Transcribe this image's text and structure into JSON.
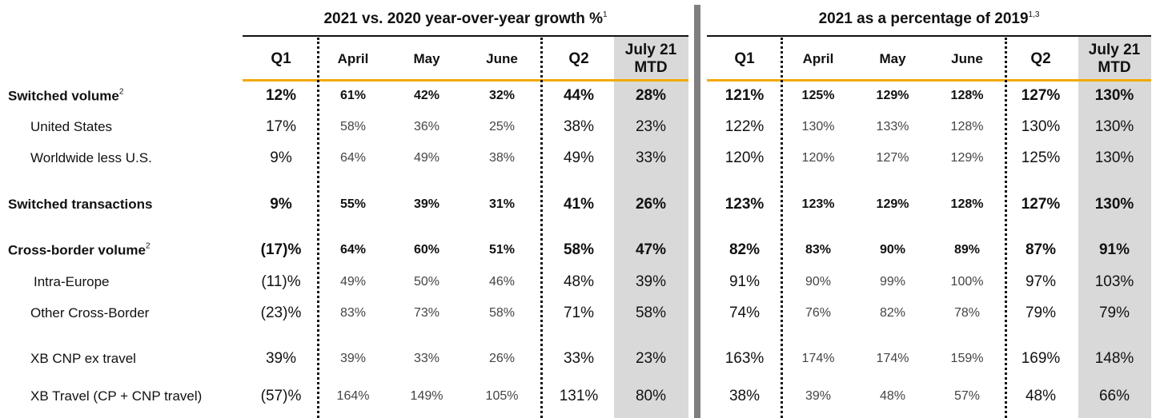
{
  "sections": [
    {
      "title": "2021 vs. 2020 year-over-year growth %",
      "title_sup": "1",
      "columns": [
        "Q1",
        "April",
        "May",
        "June",
        "Q2",
        "July 21 MTD"
      ],
      "rows": [
        [
          "12%",
          "61%",
          "42%",
          "32%",
          "44%",
          "28%"
        ],
        [
          "17%",
          "58%",
          "36%",
          "25%",
          "38%",
          "23%"
        ],
        [
          "9%",
          "64%",
          "49%",
          "38%",
          "49%",
          "33%"
        ],
        [
          "9%",
          "55%",
          "39%",
          "31%",
          "41%",
          "26%"
        ],
        [
          "(17)%",
          "64%",
          "60%",
          "51%",
          "58%",
          "47%"
        ],
        [
          "(11)%",
          "49%",
          "50%",
          "46%",
          "48%",
          "39%"
        ],
        [
          "(23)%",
          "83%",
          "73%",
          "58%",
          "71%",
          "58%"
        ],
        [
          "39%",
          "39%",
          "33%",
          "26%",
          "33%",
          "23%"
        ],
        [
          "(57)%",
          "164%",
          "149%",
          "105%",
          "131%",
          "80%"
        ]
      ]
    },
    {
      "title": "2021 as a percentage of 2019",
      "title_sup": "1,3",
      "columns": [
        "Q1",
        "April",
        "May",
        "June",
        "Q2",
        "July 21 MTD"
      ],
      "rows": [
        [
          "121%",
          "125%",
          "129%",
          "128%",
          "127%",
          "130%"
        ],
        [
          "122%",
          "130%",
          "133%",
          "128%",
          "130%",
          "130%"
        ],
        [
          "120%",
          "120%",
          "127%",
          "129%",
          "125%",
          "130%"
        ],
        [
          "123%",
          "123%",
          "129%",
          "128%",
          "127%",
          "130%"
        ],
        [
          "82%",
          "83%",
          "90%",
          "89%",
          "87%",
          "91%"
        ],
        [
          "91%",
          "90%",
          "99%",
          "100%",
          "97%",
          "103%"
        ],
        [
          "74%",
          "76%",
          "82%",
          "78%",
          "79%",
          "79%"
        ],
        [
          "163%",
          "174%",
          "174%",
          "159%",
          "169%",
          "148%"
        ],
        [
          "38%",
          "39%",
          "48%",
          "57%",
          "48%",
          "66%"
        ]
      ]
    }
  ],
  "row_labels": [
    {
      "label": "Switched volume",
      "sup": "2"
    },
    {
      "label": "United States"
    },
    {
      "label": "Worldwide less U.S."
    },
    {
      "label": "Switched transactions"
    },
    {
      "label": "Cross-border volume",
      "sup": "2"
    },
    {
      "label": "Intra-Europe"
    },
    {
      "label": "Other Cross-Border"
    },
    {
      "label": "XB CNP ex travel"
    },
    {
      "label": "XB Travel (CP + CNP travel)"
    }
  ]
}
